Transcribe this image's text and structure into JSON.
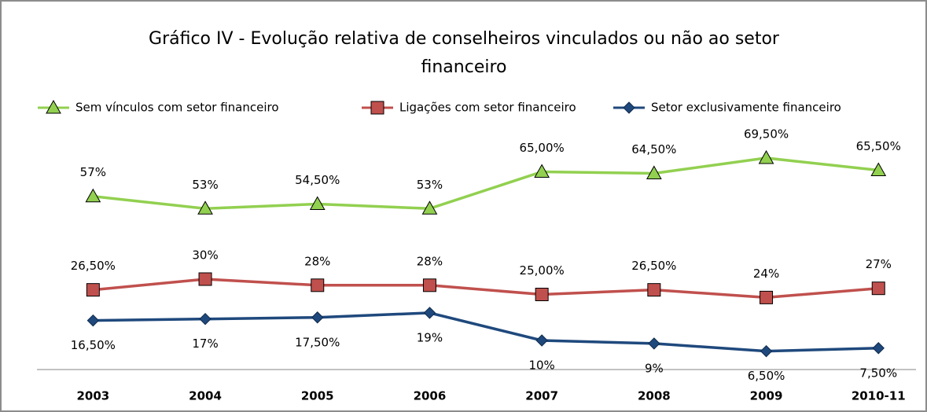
{
  "chart_data": {
    "type": "line",
    "title": "Gráfico IV - Evolução relativa de conselheiros vinculados ou não ao setor financeiro",
    "categories": [
      "2003",
      "2004",
      "2005",
      "2006",
      "2007",
      "2008",
      "2009",
      "2010-11"
    ],
    "ylim": [
      0,
      80
    ],
    "series": [
      {
        "name": "Sem vínculos com setor financeiro",
        "color": "#92d050",
        "marker": "triangle",
        "values": [
          57,
          53,
          54.5,
          53,
          65,
          64.5,
          69.5,
          65.5
        ],
        "value_labels": [
          "57%",
          "53%",
          "54,50%",
          "53%",
          "65,00%",
          "64,50%",
          "69,50%",
          "65,50%"
        ]
      },
      {
        "name": "Ligações com setor financeiro",
        "color": "#c0504d",
        "marker": "square",
        "values": [
          26.5,
          30,
          28,
          28,
          25,
          26.5,
          24,
          27
        ],
        "value_labels": [
          "26,50%",
          "30%",
          "28%",
          "28%",
          "25,00%",
          "26,50%",
          "24%",
          "27%"
        ]
      },
      {
        "name": "Setor exclusivamente financeiro",
        "color": "#1f497d",
        "marker": "diamond",
        "values": [
          16.5,
          17,
          17.5,
          19,
          10,
          9,
          6.5,
          7.5
        ],
        "value_labels": [
          "16,50%",
          "17%",
          "17,50%",
          "19%",
          "10%",
          "9%",
          "6,50%",
          "7,50%"
        ]
      }
    ]
  }
}
